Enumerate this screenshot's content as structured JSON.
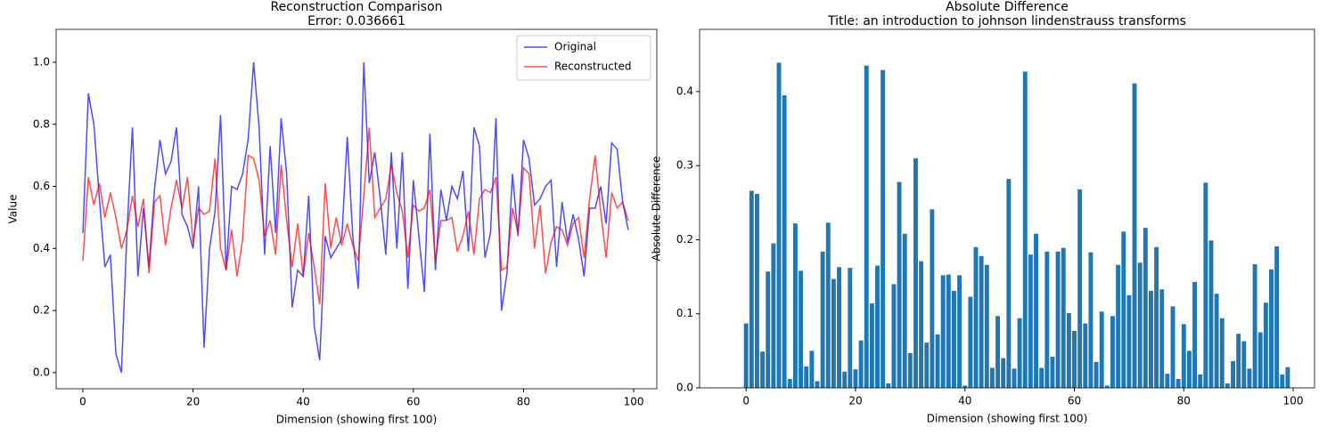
{
  "chart_data": [
    {
      "type": "line",
      "title": "Reconstruction Comparison",
      "subtitle": "Error: 0.036661",
      "xlabel": "Dimension (showing first 100)",
      "ylabel": "Value",
      "x": [
        0,
        1,
        2,
        3,
        4,
        5,
        6,
        7,
        8,
        9,
        10,
        11,
        12,
        13,
        14,
        15,
        16,
        17,
        18,
        19,
        20,
        21,
        22,
        23,
        24,
        25,
        26,
        27,
        28,
        29,
        30,
        31,
        32,
        33,
        34,
        35,
        36,
        37,
        38,
        39,
        40,
        41,
        42,
        43,
        44,
        45,
        46,
        47,
        48,
        49,
        50,
        51,
        52,
        53,
        54,
        55,
        56,
        57,
        58,
        59,
        60,
        61,
        62,
        63,
        64,
        65,
        66,
        67,
        68,
        69,
        70,
        71,
        72,
        73,
        74,
        75,
        76,
        77,
        78,
        79,
        80,
        81,
        82,
        83,
        84,
        85,
        86,
        87,
        88,
        89,
        90,
        91,
        92,
        93,
        94,
        95,
        96,
        97,
        98,
        99
      ],
      "series": [
        {
          "name": "Original",
          "color": "#0000ff",
          "alpha": 0.7,
          "values": [
            0.45,
            0.9,
            0.8,
            0.56,
            0.34,
            0.38,
            0.06,
            0.0,
            0.45,
            0.79,
            0.31,
            0.53,
            0.34,
            0.59,
            0.75,
            0.64,
            0.68,
            0.79,
            0.51,
            0.47,
            0.4,
            0.6,
            0.08,
            0.4,
            0.52,
            0.83,
            0.33,
            0.6,
            0.59,
            0.64,
            0.75,
            1.0,
            0.79,
            0.38,
            0.73,
            0.45,
            0.82,
            0.64,
            0.21,
            0.33,
            0.31,
            0.57,
            0.15,
            0.04,
            0.44,
            0.37,
            0.4,
            0.43,
            0.76,
            0.44,
            0.27,
            1.0,
            0.61,
            0.71,
            0.56,
            0.38,
            0.71,
            0.4,
            0.71,
            0.27,
            0.62,
            0.44,
            0.26,
            0.77,
            0.33,
            0.59,
            0.49,
            0.6,
            0.56,
            0.65,
            0.39,
            0.79,
            0.73,
            0.37,
            0.45,
            0.82,
            0.2,
            0.32,
            0.64,
            0.44,
            0.75,
            0.69,
            0.54,
            0.56,
            0.6,
            0.62,
            0.34,
            0.55,
            0.42,
            0.51,
            0.43,
            0.31,
            0.53,
            0.53,
            0.6,
            0.48,
            0.74,
            0.72,
            0.55,
            0.46
          ]
        },
        {
          "name": "Reconstructed",
          "color": "#ff0000",
          "alpha": 0.7,
          "values": [
            0.36,
            0.63,
            0.54,
            0.61,
            0.5,
            0.58,
            0.5,
            0.4,
            0.46,
            0.57,
            0.47,
            0.56,
            0.32,
            0.55,
            0.57,
            0.41,
            0.53,
            0.62,
            0.53,
            0.63,
            0.42,
            0.53,
            0.51,
            0.52,
            0.69,
            0.4,
            0.33,
            0.46,
            0.31,
            0.43,
            0.7,
            0.69,
            0.62,
            0.44,
            0.49,
            0.38,
            0.67,
            0.49,
            0.34,
            0.48,
            0.31,
            0.45,
            0.34,
            0.22,
            0.61,
            0.4,
            0.5,
            0.41,
            0.48,
            0.41,
            0.36,
            0.57,
            0.79,
            0.5,
            0.53,
            0.56,
            0.67,
            0.58,
            0.52,
            0.37,
            0.54,
            0.52,
            0.53,
            0.59,
            0.36,
            0.49,
            0.49,
            0.5,
            0.39,
            0.44,
            0.52,
            0.38,
            0.56,
            0.59,
            0.58,
            0.63,
            0.33,
            0.34,
            0.53,
            0.45,
            0.66,
            0.64,
            0.4,
            0.54,
            0.32,
            0.42,
            0.47,
            0.46,
            0.41,
            0.48,
            0.5,
            0.37,
            0.56,
            0.7,
            0.52,
            0.37,
            0.58,
            0.53,
            0.55,
            0.49
          ]
        }
      ],
      "xlim": [
        -4.85,
        104.2
      ],
      "ylim": [
        -0.052,
        1.106
      ],
      "xticks": [
        0,
        20,
        40,
        60,
        80,
        100
      ],
      "yticks": [
        {
          "value": 0,
          "label": "0.0"
        },
        {
          "value": 0.2,
          "label": "0.2"
        },
        {
          "value": 0.4,
          "label": "0.4"
        },
        {
          "value": 0.6,
          "label": "0.6"
        },
        {
          "value": 0.8,
          "label": "0.8"
        },
        {
          "value": 1,
          "label": "1.0"
        }
      ],
      "legend": "upper right"
    },
    {
      "type": "bar",
      "title": "Absolute Difference",
      "subtitle": "Title: an introduction to johnson lindenstrauss transforms",
      "xlabel": "Dimension (showing first 100)",
      "ylabel": "Absolute Difference",
      "color": "#1f77b4",
      "x": [
        0,
        1,
        2,
        3,
        4,
        5,
        6,
        7,
        8,
        9,
        10,
        11,
        12,
        13,
        14,
        15,
        16,
        17,
        18,
        19,
        20,
        21,
        22,
        23,
        24,
        25,
        26,
        27,
        28,
        29,
        30,
        31,
        32,
        33,
        34,
        35,
        36,
        37,
        38,
        39,
        40,
        41,
        42,
        43,
        44,
        45,
        46,
        47,
        48,
        49,
        50,
        51,
        52,
        53,
        54,
        55,
        56,
        57,
        58,
        59,
        60,
        61,
        62,
        63,
        64,
        65,
        66,
        67,
        68,
        69,
        70,
        71,
        72,
        73,
        74,
        75,
        76,
        77,
        78,
        79,
        80,
        81,
        82,
        83,
        84,
        85,
        86,
        87,
        88,
        89,
        90,
        91,
        92,
        93,
        94,
        95,
        96,
        97,
        98,
        99
      ],
      "values": [
        0.087,
        0.266,
        0.262,
        0.049,
        0.157,
        0.195,
        0.439,
        0.395,
        0.012,
        0.222,
        0.158,
        0.029,
        0.05,
        0.009,
        0.184,
        0.223,
        0.147,
        0.163,
        0.022,
        0.162,
        0.025,
        0.064,
        0.435,
        0.114,
        0.165,
        0.429,
        0.006,
        0.14,
        0.278,
        0.208,
        0.047,
        0.31,
        0.171,
        0.061,
        0.241,
        0.072,
        0.152,
        0.153,
        0.131,
        0.152,
        0.003,
        0.123,
        0.19,
        0.178,
        0.166,
        0.027,
        0.097,
        0.04,
        0.282,
        0.026,
        0.094,
        0.427,
        0.18,
        0.208,
        0.027,
        0.184,
        0.042,
        0.184,
        0.189,
        0.101,
        0.077,
        0.268,
        0.087,
        0.183,
        0.035,
        0.103,
        0.003,
        0.097,
        0.166,
        0.211,
        0.125,
        0.411,
        0.169,
        0.216,
        0.131,
        0.19,
        0.133,
        0.019,
        0.11,
        0.012,
        0.086,
        0.05,
        0.143,
        0.018,
        0.277,
        0.199,
        0.127,
        0.094,
        0.006,
        0.036,
        0.073,
        0.063,
        0.026,
        0.167,
        0.075,
        0.115,
        0.16,
        0.191,
        0.018,
        0.028
      ],
      "bar_width": 0.8,
      "xlim": [
        -8.5,
        103.9
      ],
      "ylim": [
        0,
        0.484
      ],
      "xticks": [
        0,
        20,
        40,
        60,
        80,
        100
      ],
      "yticks": [
        {
          "value": 0,
          "label": "0.0"
        },
        {
          "value": 0.1,
          "label": "0.1"
        },
        {
          "value": 0.2,
          "label": "0.2"
        },
        {
          "value": 0.3,
          "label": "0.3"
        },
        {
          "value": 0.4,
          "label": "0.4"
        }
      ]
    }
  ]
}
